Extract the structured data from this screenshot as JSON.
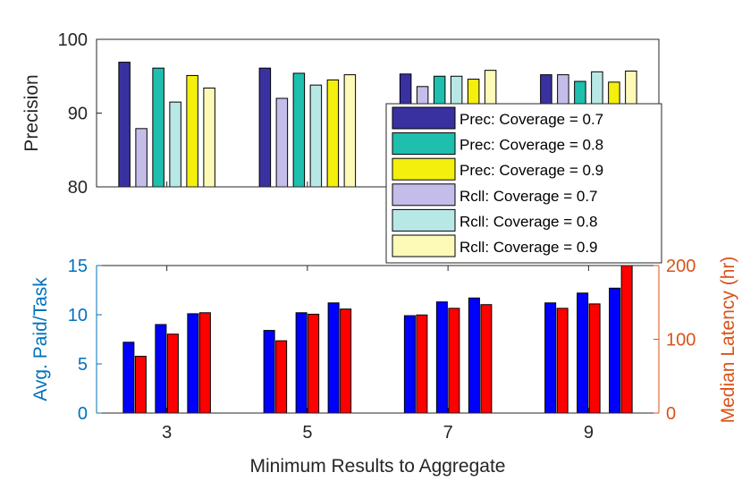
{
  "chart_data": [
    {
      "type": "bar",
      "title": "",
      "ylabel": "Precision",
      "ylim": [
        80,
        100
      ],
      "yticks": [
        "80",
        "90",
        "100"
      ],
      "grid": false,
      "categories": [
        "3",
        "5",
        "7",
        "9"
      ],
      "series": [
        {
          "name": "Prec: Coverage = 0.7",
          "color": "#3a31a0",
          "values": [
            96.9,
            96.1,
            95.3,
            95.2
          ]
        },
        {
          "name": "Rcll: Coverage = 0.7",
          "color": "#c4bdea",
          "values": [
            87.9,
            92.0,
            93.6,
            95.2
          ]
        },
        {
          "name": "Prec: Coverage = 0.8",
          "color": "#1fbfae",
          "values": [
            96.1,
            95.4,
            95.0,
            94.3
          ]
        },
        {
          "name": "Rcll: Coverage = 0.8",
          "color": "#b8e8e6",
          "values": [
            91.5,
            93.8,
            95.0,
            95.6
          ]
        },
        {
          "name": "Prec: Coverage = 0.9",
          "color": "#f4ef0c",
          "values": [
            95.1,
            94.5,
            94.6,
            94.2
          ]
        },
        {
          "name": "Rcll: Coverage = 0.9",
          "color": "#fdfab8",
          "values": [
            93.4,
            95.2,
            95.8,
            95.7
          ]
        }
      ],
      "legend": {
        "position": "bottom-right",
        "entries": [
          {
            "label": "Prec: Coverage = 0.7",
            "color": "#3a31a0"
          },
          {
            "label": "Prec: Coverage = 0.8",
            "color": "#1fbfae"
          },
          {
            "label": "Prec: Coverage = 0.9",
            "color": "#f4ef0c"
          },
          {
            "label": "Rcll: Coverage = 0.7",
            "color": "#c4bdea"
          },
          {
            "label": "Rcll: Coverage = 0.8",
            "color": "#b8e8e6"
          },
          {
            "label": "Rcll: Coverage = 0.9",
            "color": "#fdfab8"
          }
        ]
      }
    },
    {
      "type": "bar",
      "title": "",
      "xlabel": "Minimum Results to Aggregate",
      "ylabel_left": "Avg. Paid/Task",
      "ylabel_right": "Median Latency (hr)",
      "ylim_left": [
        0,
        15
      ],
      "ylim_right": [
        0,
        200
      ],
      "yticks_left": [
        "0",
        "5",
        "10",
        "15"
      ],
      "yticks_right": [
        "0",
        "100",
        "200"
      ],
      "left_axis_color": "#0072bd",
      "right_axis_color": "#d95319",
      "grid": false,
      "categories": [
        "3",
        "5",
        "7",
        "9"
      ],
      "coverage_groups": [
        {
          "paid_color": "#0000ff",
          "latency_color": "#ff0000",
          "paid": [
            7.2,
            8.4,
            9.9,
            11.2
          ],
          "latency": [
            77,
            98,
            133,
            142
          ]
        },
        {
          "paid_color": "#0000ff",
          "latency_color": "#ff0000",
          "paid": [
            9.0,
            10.2,
            11.3,
            12.2
          ],
          "latency": [
            107,
            134,
            142,
            148
          ]
        },
        {
          "paid_color": "#0000ff",
          "latency_color": "#ff0000",
          "paid": [
            10.1,
            11.2,
            11.7,
            12.7
          ],
          "latency": [
            136,
            141,
            147,
            200
          ]
        }
      ]
    }
  ]
}
